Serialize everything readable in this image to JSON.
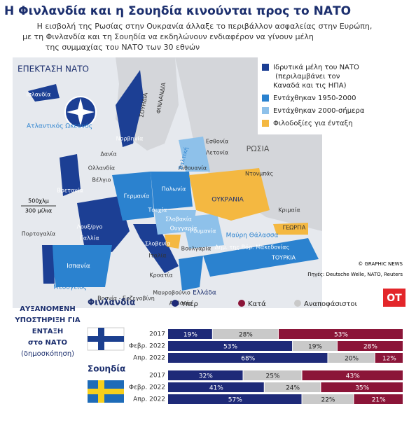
{
  "header": {
    "title": "Η Φινλανδία και η Σουηδία κινούνται προς το ΝΑΤΟ",
    "subtitle": [
      "Η εισβολή της Ρωσίας στην Ουκρανία άλλαξε το περιβάλλον ασφαλείας στην Ευρώπη,",
      "με τη Φινλανδία και τη Σουηδία να εκδηλώνουν ενδιαφέρον να γίνουν μέλη",
      "της συμμαχίας του ΝΑΤΟ των 30 εθνών"
    ]
  },
  "map": {
    "title": "ΕΠΕΚΤΑΣΗ ΝΑΤΟ",
    "legend": [
      {
        "label": "Ιδρυτικά μέλη του ΝΑΤΟ (περιλαμβάνει τον Καναδά και τις ΗΠΑ)",
        "color": "#1c3f94"
      },
      {
        "label": "Εντάχθηκαν 1950-2000",
        "color": "#2b82cf"
      },
      {
        "label": "Εντάχθηκαν 2000-σήμερα",
        "color": "#8ec1ea"
      },
      {
        "label": "Φιλοδοξίες για ένταξη",
        "color": "#f4b841"
      }
    ],
    "labels": [
      "Ισλανδία",
      "Ατλαντικός Ωκεανός",
      "ΣΟΥΗΔΙΑ",
      "ΦΙΝΛΑΝΔΙΑ",
      "Νορβηγία",
      "Δανία",
      "Ολλανδία",
      "Βέλγιο",
      "Βρετανία",
      "Λουξ/ργο",
      "Γαλλία",
      "Πορτογαλία",
      "Ισπανία",
      "Γερμανία",
      "Πολωνία",
      "Τσεχία",
      "Σλοβακία",
      "Ουγγαρία",
      "Σλοβενία",
      "Ιταλία",
      "Κροατία",
      "Βοσνία - Ερζεγοβίνη",
      "Μαυροβούνιο",
      "Αλβανία",
      "Ελλάδα",
      "Βουλγαρία",
      "Ρουμανία",
      "Δημ. της Βόρ. Μακεδονίας",
      "ΤΟΥΡΚΙΑ",
      "Μαύρη Θάλασσα",
      "Κριμαία",
      "ΓΕΩΡΓΙΑ",
      "ΟΥΚΡΑΝΙΑ",
      "Ντονμπάς",
      "ΡΩΣΙΑ",
      "Εσθονία",
      "Λετονία",
      "Λιθουανία",
      "Βαλτική",
      "Μεσόγειος"
    ],
    "scale": [
      "500χλμ",
      "300 μίλια"
    ],
    "credits": [
      "© GRAPHIC NEWS",
      "Πηγές: Deutsche Welle, NATO, Reuters"
    ],
    "logo": "ΟΤ"
  },
  "chart_data": {
    "type": "stacked-bar",
    "title": [
      "ΑΥΞΑΝΟΜΕΝΗ",
      "ΥΠΟΣΤΗΡΙΞΗ ΓΙΑ",
      "ΕΝΤΑΞΗ",
      "στο ΝΑΤΟ",
      "(δημοσκόπηση)"
    ],
    "xlim": [
      0,
      100
    ],
    "groups": [
      {
        "name": "Φινλανδία",
        "categories": [
          "2017",
          "Φεβρ. 2022",
          "Απρ. 2022"
        ]
      },
      {
        "name": "Σουηδία",
        "categories": [
          "2017",
          "Φεβρ. 2022",
          "Απρ. 2022"
        ]
      }
    ],
    "series": [
      {
        "name": "Υπέρ",
        "color": "#1e2a78",
        "values": [
          [
            19,
            53,
            68
          ],
          [
            32,
            41,
            57
          ]
        ],
        "value_labels": [
          [
            "19%",
            "53%",
            "68%"
          ],
          [
            "32%",
            "41%",
            "57%"
          ]
        ]
      },
      {
        "name": "Αναποφάσιστοι",
        "color": "#c9c9c9",
        "values": [
          [
            28,
            19,
            20
          ],
          [
            25,
            24,
            22
          ]
        ],
        "value_labels": [
          [
            "28%",
            "19%",
            "20%"
          ],
          [
            "25%",
            "24%",
            "22%"
          ]
        ]
      },
      {
        "name": "Κατά",
        "color": "#8b1538",
        "values": [
          [
            53,
            28,
            12
          ],
          [
            43,
            35,
            21
          ]
        ],
        "value_labels": [
          [
            "53%",
            "28%",
            "12%"
          ],
          [
            "43%",
            "35%",
            "21%"
          ]
        ]
      }
    ]
  }
}
